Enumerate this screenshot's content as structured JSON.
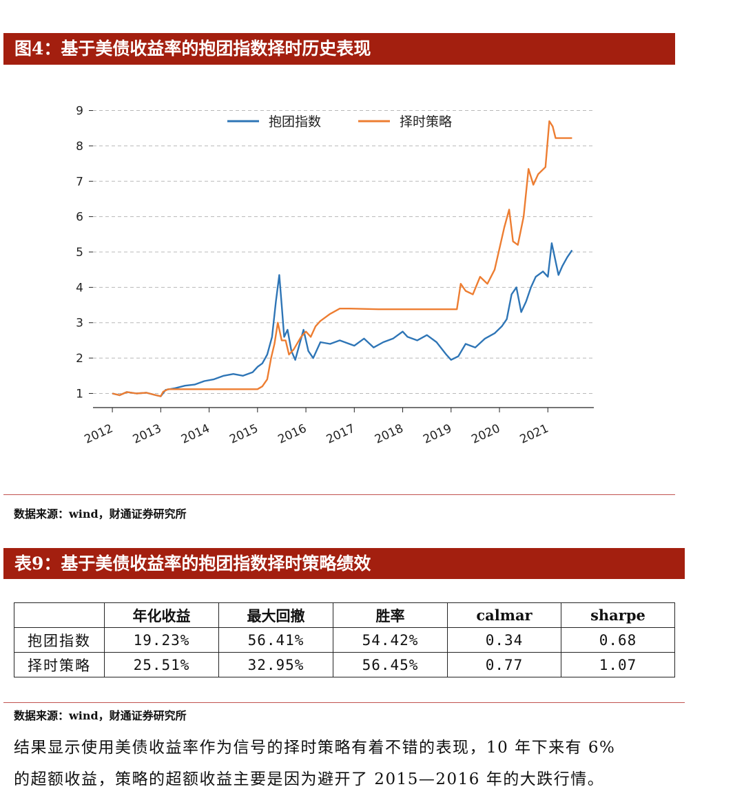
{
  "figure": {
    "title": "图4：基于美债收益率的抱团指数择时历史表现",
    "source": "数据来源：wind，财通证券研究所"
  },
  "chart_data": {
    "type": "line",
    "x_ticks": [
      "2012",
      "2013",
      "2014",
      "2015",
      "2016",
      "2017",
      "2018",
      "2019",
      "2020",
      "2021"
    ],
    "y_ticks": [
      1,
      2,
      3,
      4,
      5,
      6,
      7,
      8,
      9
    ],
    "xlim": [
      2011.6,
      2021.95
    ],
    "ylim": [
      0.6,
      9.4
    ],
    "grid": "horizontal-dashed",
    "legend_position": "top",
    "series": [
      {
        "name": "抱团指数",
        "color": "#2e75b6",
        "points": [
          [
            2012.0,
            1.0
          ],
          [
            2012.15,
            0.95
          ],
          [
            2012.3,
            1.04
          ],
          [
            2012.5,
            1.0
          ],
          [
            2012.7,
            1.02
          ],
          [
            2012.9,
            0.95
          ],
          [
            2013.0,
            0.92
          ],
          [
            2013.1,
            1.1
          ],
          [
            2013.3,
            1.15
          ],
          [
            2013.5,
            1.22
          ],
          [
            2013.7,
            1.25
          ],
          [
            2013.9,
            1.35
          ],
          [
            2014.1,
            1.4
          ],
          [
            2014.3,
            1.5
          ],
          [
            2014.5,
            1.55
          ],
          [
            2014.7,
            1.5
          ],
          [
            2014.9,
            1.6
          ],
          [
            2015.0,
            1.75
          ],
          [
            2015.1,
            1.85
          ],
          [
            2015.2,
            2.1
          ],
          [
            2015.3,
            2.6
          ],
          [
            2015.38,
            3.6
          ],
          [
            2015.45,
            4.35
          ],
          [
            2015.5,
            3.5
          ],
          [
            2015.55,
            2.6
          ],
          [
            2015.62,
            2.8
          ],
          [
            2015.7,
            2.2
          ],
          [
            2015.78,
            1.95
          ],
          [
            2015.85,
            2.3
          ],
          [
            2015.95,
            2.8
          ],
          [
            2016.05,
            2.2
          ],
          [
            2016.15,
            2.0
          ],
          [
            2016.3,
            2.45
          ],
          [
            2016.5,
            2.4
          ],
          [
            2016.7,
            2.5
          ],
          [
            2017.0,
            2.35
          ],
          [
            2017.2,
            2.55
          ],
          [
            2017.4,
            2.3
          ],
          [
            2017.6,
            2.45
          ],
          [
            2017.8,
            2.55
          ],
          [
            2018.0,
            2.75
          ],
          [
            2018.1,
            2.6
          ],
          [
            2018.3,
            2.5
          ],
          [
            2018.5,
            2.65
          ],
          [
            2018.7,
            2.45
          ],
          [
            2018.9,
            2.1
          ],
          [
            2019.0,
            1.95
          ],
          [
            2019.15,
            2.05
          ],
          [
            2019.3,
            2.4
          ],
          [
            2019.5,
            2.3
          ],
          [
            2019.7,
            2.55
          ],
          [
            2019.9,
            2.7
          ],
          [
            2020.05,
            2.9
          ],
          [
            2020.15,
            3.1
          ],
          [
            2020.25,
            3.8
          ],
          [
            2020.35,
            4.0
          ],
          [
            2020.45,
            3.3
          ],
          [
            2020.55,
            3.6
          ],
          [
            2020.65,
            4.0
          ],
          [
            2020.75,
            4.3
          ],
          [
            2020.9,
            4.45
          ],
          [
            2021.0,
            4.3
          ],
          [
            2021.08,
            5.25
          ],
          [
            2021.15,
            4.8
          ],
          [
            2021.22,
            4.35
          ],
          [
            2021.3,
            4.6
          ],
          [
            2021.4,
            4.85
          ],
          [
            2021.5,
            5.05
          ]
        ]
      },
      {
        "name": "择时策略",
        "color": "#ed7d31",
        "points": [
          [
            2012.0,
            1.0
          ],
          [
            2012.15,
            0.95
          ],
          [
            2012.3,
            1.04
          ],
          [
            2012.5,
            1.0
          ],
          [
            2012.7,
            1.02
          ],
          [
            2012.9,
            0.95
          ],
          [
            2013.0,
            0.92
          ],
          [
            2013.05,
            1.05
          ],
          [
            2013.15,
            1.12
          ],
          [
            2013.5,
            1.12
          ],
          [
            2014.0,
            1.12
          ],
          [
            2014.5,
            1.12
          ],
          [
            2015.0,
            1.12
          ],
          [
            2015.1,
            1.2
          ],
          [
            2015.2,
            1.4
          ],
          [
            2015.28,
            2.0
          ],
          [
            2015.35,
            2.4
          ],
          [
            2015.42,
            3.0
          ],
          [
            2015.5,
            2.5
          ],
          [
            2015.58,
            2.5
          ],
          [
            2015.65,
            2.1
          ],
          [
            2015.75,
            2.25
          ],
          [
            2015.9,
            2.6
          ],
          [
            2016.0,
            2.75
          ],
          [
            2016.1,
            2.6
          ],
          [
            2016.2,
            2.9
          ],
          [
            2016.3,
            3.05
          ],
          [
            2016.5,
            3.25
          ],
          [
            2016.7,
            3.4
          ],
          [
            2016.9,
            3.4
          ],
          [
            2017.5,
            3.38
          ],
          [
            2018.0,
            3.38
          ],
          [
            2018.5,
            3.38
          ],
          [
            2019.0,
            3.38
          ],
          [
            2019.12,
            3.38
          ],
          [
            2019.2,
            4.1
          ],
          [
            2019.3,
            3.9
          ],
          [
            2019.45,
            3.8
          ],
          [
            2019.6,
            4.3
          ],
          [
            2019.75,
            4.1
          ],
          [
            2019.9,
            4.5
          ],
          [
            2020.1,
            5.7
          ],
          [
            2020.2,
            6.2
          ],
          [
            2020.28,
            5.3
          ],
          [
            2020.38,
            5.2
          ],
          [
            2020.5,
            6.0
          ],
          [
            2020.6,
            7.35
          ],
          [
            2020.7,
            6.9
          ],
          [
            2020.8,
            7.2
          ],
          [
            2020.95,
            7.4
          ],
          [
            2021.03,
            8.7
          ],
          [
            2021.1,
            8.55
          ],
          [
            2021.16,
            8.22
          ],
          [
            2021.5,
            8.22
          ]
        ]
      }
    ]
  },
  "table": {
    "title": "表9：基于美债收益率的抱团指数择时策略绩效",
    "headers": [
      "",
      "年化收益",
      "最大回撤",
      "胜率",
      "calmar",
      "sharpe"
    ],
    "rows": [
      {
        "label": "抱团指数",
        "cells": [
          "19.23%",
          "56.41%",
          "54.42%",
          "0.34",
          "0.68"
        ]
      },
      {
        "label": "择时策略",
        "cells": [
          "25.51%",
          "32.95%",
          "56.45%",
          "0.77",
          "1.07"
        ]
      }
    ],
    "source": "数据来源：wind，财通证券研究所"
  },
  "paragraph": {
    "line1": "结果显示使用美债收益率作为信号的择时策略有着不错的表现，10 年下来有 6%",
    "line2": "的超额收益，策略的超额收益主要是因为避开了 2015—2016 年的大跌行情。"
  }
}
